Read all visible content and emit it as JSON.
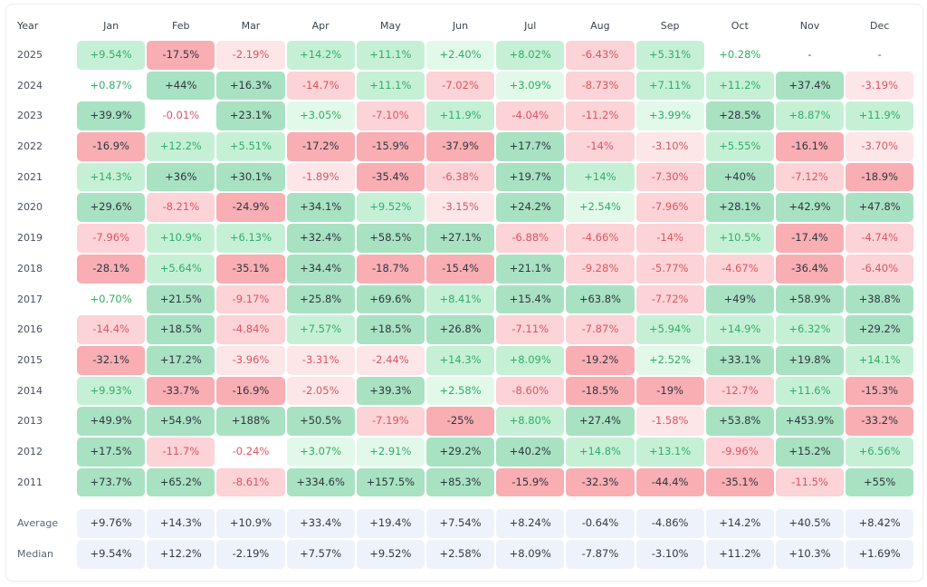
{
  "colors": {
    "pos_strong": "#a8e2c2",
    "pos_mid": "#c6f0d6",
    "pos_light": "#e2f9e9",
    "neg_strong": "#f8aeb3",
    "neg_mid": "#fcd3d6",
    "neg_light": "#fde6e8",
    "pos_text": "#2fae68",
    "neg_text": "#dc5564",
    "dark_text": "#2f3540",
    "stat_bg": "#eef3fb"
  },
  "chart_data": {
    "type": "heatmap",
    "title": "",
    "corner_label": "Year",
    "columns": [
      "Jan",
      "Feb",
      "Mar",
      "Apr",
      "May",
      "Jun",
      "Jul",
      "Aug",
      "Sep",
      "Oct",
      "Nov",
      "Dec"
    ],
    "rows": [
      {
        "year": "2025",
        "values": [
          "+9.54%",
          "-17.5%",
          "-2.19%",
          "+14.2%",
          "+11.1%",
          "+2.40%",
          "+8.02%",
          "-6.43%",
          "+5.31%",
          "+0.28%",
          "-",
          "-"
        ]
      },
      {
        "year": "2024",
        "values": [
          "+0.87%",
          "+44%",
          "+16.3%",
          "-14.7%",
          "+11.1%",
          "-7.02%",
          "+3.09%",
          "-8.73%",
          "+7.11%",
          "+11.2%",
          "+37.4%",
          "-3.19%"
        ]
      },
      {
        "year": "2023",
        "values": [
          "+39.9%",
          "-0.01%",
          "+23.1%",
          "+3.05%",
          "-7.10%",
          "+11.9%",
          "-4.04%",
          "-11.2%",
          "+3.99%",
          "+28.5%",
          "+8.87%",
          "+11.9%"
        ]
      },
      {
        "year": "2022",
        "values": [
          "-16.9%",
          "+12.2%",
          "+5.51%",
          "-17.2%",
          "-15.9%",
          "-37.9%",
          "+17.7%",
          "-14%",
          "-3.10%",
          "+5.55%",
          "-16.1%",
          "-3.70%"
        ]
      },
      {
        "year": "2021",
        "values": [
          "+14.3%",
          "+36%",
          "+30.1%",
          "-1.89%",
          "-35.4%",
          "-6.38%",
          "+19.7%",
          "+14%",
          "-7.30%",
          "+40%",
          "-7.12%",
          "-18.9%"
        ]
      },
      {
        "year": "2020",
        "values": [
          "+29.6%",
          "-8.21%",
          "-24.9%",
          "+34.1%",
          "+9.52%",
          "-3.15%",
          "+24.2%",
          "+2.54%",
          "-7.96%",
          "+28.1%",
          "+42.9%",
          "+47.8%"
        ]
      },
      {
        "year": "2019",
        "values": [
          "-7.96%",
          "+10.9%",
          "+6.13%",
          "+32.4%",
          "+58.5%",
          "+27.1%",
          "-6.88%",
          "-4.66%",
          "-14%",
          "+10.5%",
          "-17.4%",
          "-4.74%"
        ]
      },
      {
        "year": "2018",
        "values": [
          "-28.1%",
          "+5.64%",
          "-35.1%",
          "+34.4%",
          "-18.7%",
          "-15.4%",
          "+21.1%",
          "-9.28%",
          "-5.77%",
          "-4.67%",
          "-36.4%",
          "-6.40%"
        ]
      },
      {
        "year": "2017",
        "values": [
          "+0.70%",
          "+21.5%",
          "-9.17%",
          "+25.8%",
          "+69.6%",
          "+8.41%",
          "+15.4%",
          "+63.8%",
          "-7.72%",
          "+49%",
          "+58.9%",
          "+38.8%"
        ]
      },
      {
        "year": "2016",
        "values": [
          "-14.4%",
          "+18.5%",
          "-4.84%",
          "+7.57%",
          "+18.5%",
          "+26.8%",
          "-7.11%",
          "-7.87%",
          "+5.94%",
          "+14.9%",
          "+6.32%",
          "+29.2%"
        ]
      },
      {
        "year": "2015",
        "values": [
          "-32.1%",
          "+17.2%",
          "-3.96%",
          "-3.31%",
          "-2.44%",
          "+14.3%",
          "+8.09%",
          "-19.2%",
          "+2.52%",
          "+33.1%",
          "+19.8%",
          "+14.1%"
        ]
      },
      {
        "year": "2014",
        "values": [
          "+9.93%",
          "-33.7%",
          "-16.9%",
          "-2.05%",
          "+39.3%",
          "+2.58%",
          "-8.60%",
          "-18.5%",
          "-19%",
          "-12.7%",
          "+11.6%",
          "-15.3%"
        ]
      },
      {
        "year": "2013",
        "values": [
          "+49.9%",
          "+54.9%",
          "+188%",
          "+50.5%",
          "-7.19%",
          "-25%",
          "+8.80%",
          "+27.4%",
          "-1.58%",
          "+53.8%",
          "+453.9%",
          "-33.2%"
        ]
      },
      {
        "year": "2012",
        "values": [
          "+17.5%",
          "-11.7%",
          "-0.24%",
          "+3.07%",
          "+2.91%",
          "+29.2%",
          "+40.2%",
          "+14.8%",
          "+13.1%",
          "-9.96%",
          "+15.2%",
          "+6.56%"
        ]
      },
      {
        "year": "2011",
        "values": [
          "+73.7%",
          "+65.2%",
          "-8.61%",
          "+334.6%",
          "+157.5%",
          "+85.3%",
          "-15.9%",
          "-32.3%",
          "-44.4%",
          "-35.1%",
          "-11.5%",
          "+55%"
        ]
      }
    ],
    "summary": [
      {
        "label": "Average",
        "values": [
          "+9.76%",
          "+14.3%",
          "+10.9%",
          "+33.4%",
          "+19.4%",
          "+7.54%",
          "+8.24%",
          "-0.64%",
          "-4.86%",
          "+14.2%",
          "+40.5%",
          "+8.42%"
        ]
      },
      {
        "label": "Median",
        "values": [
          "+9.54%",
          "+12.2%",
          "-2.19%",
          "+7.57%",
          "+9.52%",
          "+2.58%",
          "+8.09%",
          "-7.87%",
          "-3.10%",
          "+11.2%",
          "+10.3%",
          "+1.69%"
        ]
      }
    ]
  }
}
